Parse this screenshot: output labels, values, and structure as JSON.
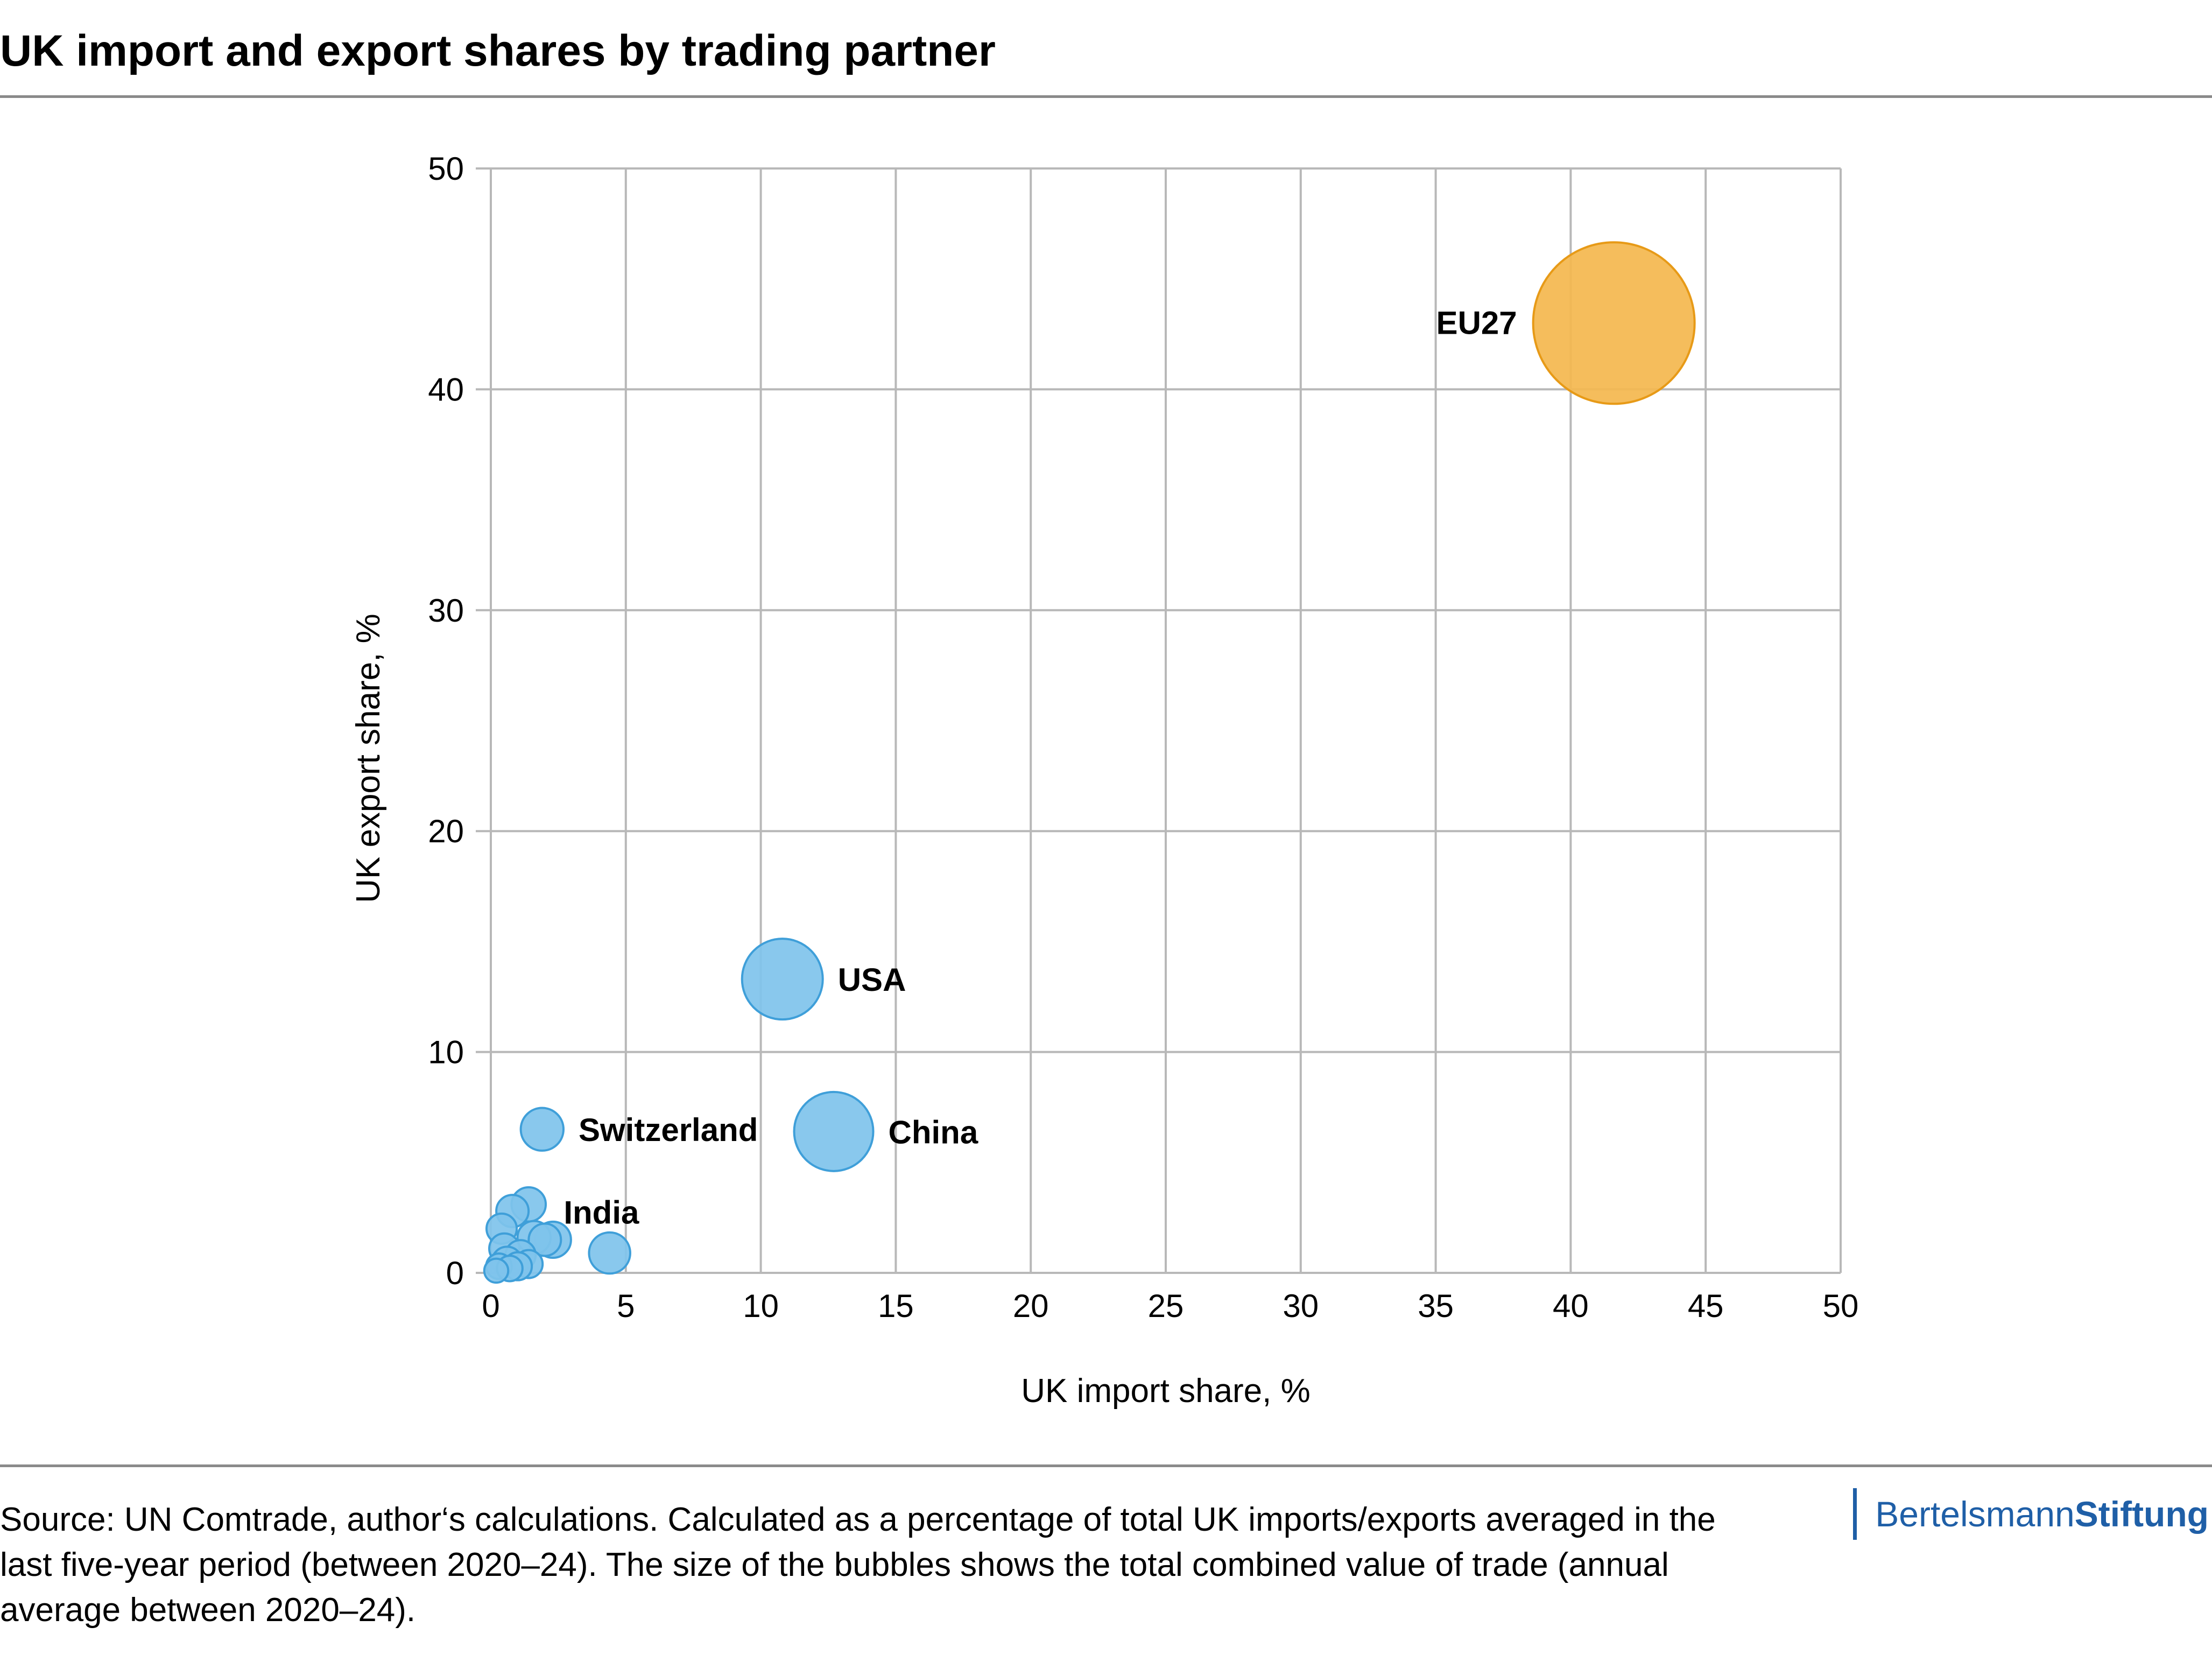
{
  "title": "UK import and export shares by trading partner",
  "source": "Source: UN Comtrade, author‘s calculations. Calculated as a percentage of total UK imports/exports averaged in the last five-year period (between 2020–24). The size of the bubbles shows the total combined value of trade (annual average between 2020–24).",
  "brand": {
    "part1": "Bertelsmann",
    "part2": "Stiftung",
    "color": "#1f5fa7"
  },
  "chart_data": {
    "type": "scatter",
    "xlabel": "UK import share, %",
    "ylabel": "UK export share, %",
    "xlim": [
      0,
      50
    ],
    "ylim": [
      0,
      50
    ],
    "xticks": [
      0,
      5,
      10,
      15,
      20,
      25,
      30,
      35,
      40,
      45,
      50
    ],
    "yticks": [
      0,
      10,
      20,
      30,
      40,
      50
    ],
    "grid": true,
    "colors": {
      "eu": "#f4b74e",
      "eu_stroke": "#e79a17",
      "other": "#7fc3ec",
      "other_stroke": "#3f9fd9"
    },
    "points": [
      {
        "label": "EU27",
        "x": 41.6,
        "y": 43.0,
        "size": 100,
        "group": "eu",
        "label_side": "left"
      },
      {
        "label": "USA",
        "x": 10.8,
        "y": 13.3,
        "size": 25,
        "group": "other",
        "label_side": "right"
      },
      {
        "label": "China",
        "x": 12.7,
        "y": 6.4,
        "size": 24,
        "group": "other",
        "label_side": "right"
      },
      {
        "label": "Switzerland",
        "x": 1.9,
        "y": 6.5,
        "size": 7,
        "group": "other",
        "label_side": "right"
      },
      {
        "label": "India",
        "x": 2.3,
        "y": 1.5,
        "size": 5,
        "group": "other",
        "label_side": "above-right"
      },
      {
        "label": "",
        "x": 4.4,
        "y": 0.9,
        "size": 6.5,
        "group": "other"
      },
      {
        "label": "",
        "x": 1.4,
        "y": 3.1,
        "size": 4.5,
        "group": "other"
      },
      {
        "label": "",
        "x": 0.8,
        "y": 2.8,
        "size": 4,
        "group": "other"
      },
      {
        "label": "",
        "x": 0.4,
        "y": 2.0,
        "size": 3.5,
        "group": "other"
      },
      {
        "label": "",
        "x": 1.6,
        "y": 1.6,
        "size": 4.2,
        "group": "other"
      },
      {
        "label": "",
        "x": 2.0,
        "y": 1.5,
        "size": 4,
        "group": "other"
      },
      {
        "label": "",
        "x": 0.5,
        "y": 1.1,
        "size": 3.5,
        "group": "other"
      },
      {
        "label": "",
        "x": 1.1,
        "y": 0.8,
        "size": 3.5,
        "group": "other"
      },
      {
        "label": "",
        "x": 0.6,
        "y": 0.5,
        "size": 3.5,
        "group": "other"
      },
      {
        "label": "",
        "x": 1.4,
        "y": 0.4,
        "size": 3,
        "group": "other"
      },
      {
        "label": "",
        "x": 1.0,
        "y": 0.3,
        "size": 3,
        "group": "other"
      },
      {
        "label": "",
        "x": 0.3,
        "y": 0.3,
        "size": 2.5,
        "group": "other"
      },
      {
        "label": "",
        "x": 0.7,
        "y": 0.2,
        "size": 2.5,
        "group": "other"
      },
      {
        "label": "",
        "x": 0.2,
        "y": 0.1,
        "size": 2.2,
        "group": "other"
      }
    ]
  }
}
